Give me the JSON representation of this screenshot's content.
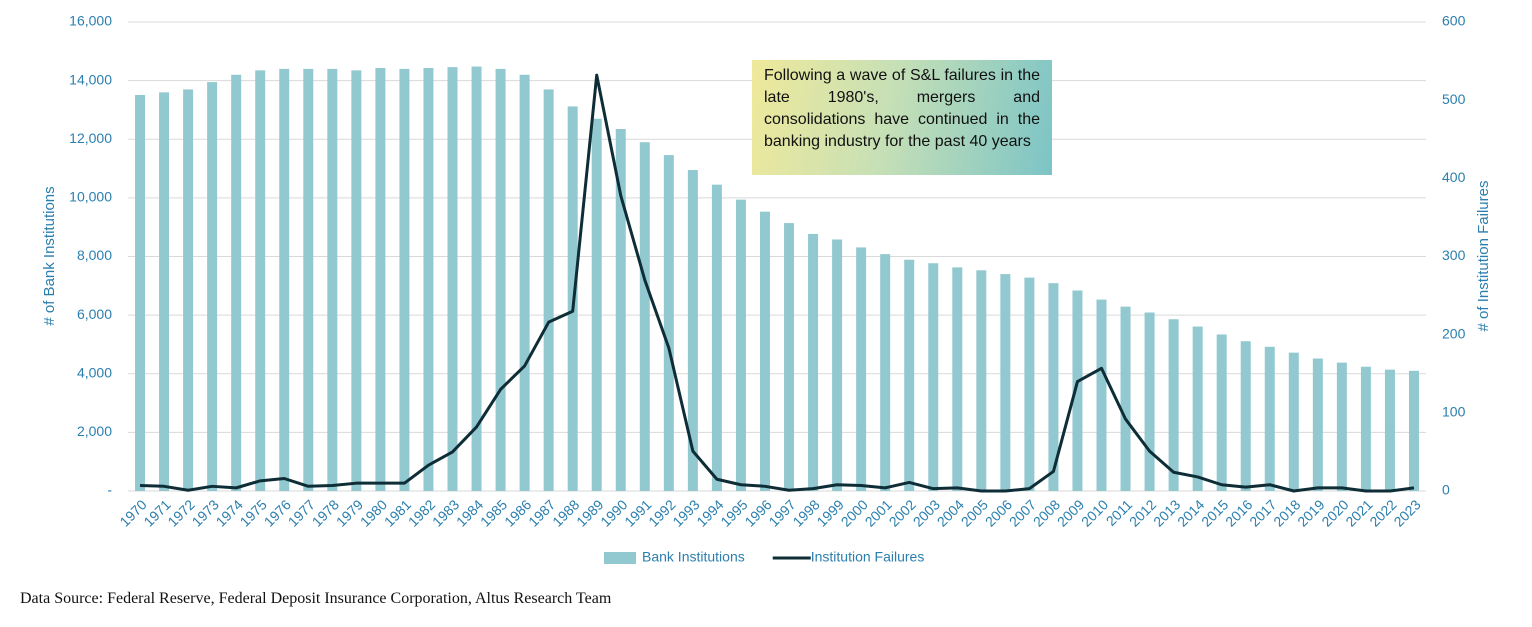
{
  "chart_data": {
    "type": "combo",
    "categories": [
      "1970",
      "1971",
      "1972",
      "1973",
      "1974",
      "1975",
      "1976",
      "1977",
      "1978",
      "1979",
      "1980",
      "1981",
      "1982",
      "1983",
      "1984",
      "1985",
      "1986",
      "1987",
      "1988",
      "1989",
      "1990",
      "1991",
      "1992",
      "1993",
      "1994",
      "1995",
      "1996",
      "1997",
      "1998",
      "1999",
      "2000",
      "2001",
      "2002",
      "2003",
      "2004",
      "2005",
      "2006",
      "2007",
      "2008",
      "2009",
      "2010",
      "2011",
      "2012",
      "2013",
      "2014",
      "2015",
      "2016",
      "2017",
      "2018",
      "2019",
      "2020",
      "2021",
      "2022",
      "2023"
    ],
    "series": [
      {
        "name": "Bank Institutions",
        "type": "bar",
        "color": "#92c9d0",
        "axis": "y",
        "values": [
          13510,
          13600,
          13700,
          13950,
          14200,
          14350,
          14400,
          14400,
          14400,
          14350,
          14430,
          14400,
          14430,
          14460,
          14480,
          14400,
          14200,
          13700,
          13120,
          12700,
          12350,
          11900,
          11460,
          10950,
          10450,
          9940,
          9530,
          9140,
          8770,
          8580,
          8310,
          8080,
          7890,
          7770,
          7630,
          7530,
          7400,
          7280,
          7090,
          6840,
          6530,
          6290,
          6090,
          5860,
          5610,
          5340,
          5110,
          4920,
          4720,
          4520,
          4380,
          4240,
          4140,
          4100
        ]
      },
      {
        "name": "Institution Failures",
        "type": "line",
        "color": "#0f2d36",
        "axis": "y2",
        "values": [
          7,
          6,
          1,
          6,
          4,
          13,
          16,
          6,
          7,
          10,
          10,
          10,
          33,
          50,
          82,
          130,
          160,
          216,
          230,
          532,
          378,
          270,
          183,
          51,
          15,
          8,
          6,
          1,
          3,
          8,
          7,
          4,
          11,
          3,
          4,
          0,
          0,
          3,
          25,
          140,
          157,
          92,
          51,
          24,
          18,
          8,
          5,
          8,
          0,
          4,
          4,
          0,
          0,
          4
        ]
      }
    ],
    "ylabel": "# of Bank Institutions",
    "y2label": "# of Institution Failures",
    "ylim": [
      0,
      16000
    ],
    "yticks": [
      {
        "value": 0,
        "label": "-"
      },
      {
        "value": 2000,
        "label": "2,000"
      },
      {
        "value": 4000,
        "label": "4,000"
      },
      {
        "value": 6000,
        "label": "6,000"
      },
      {
        "value": 8000,
        "label": "8,000"
      },
      {
        "value": 10000,
        "label": "10,000"
      },
      {
        "value": 12000,
        "label": "12,000"
      },
      {
        "value": 14000,
        "label": "14,000"
      },
      {
        "value": 16000,
        "label": "16,000"
      }
    ],
    "y2lim": [
      0,
      600
    ],
    "y2ticks": [
      0,
      100,
      200,
      300,
      400,
      500,
      600
    ],
    "grid": true,
    "legend": "bottom",
    "annotation": "Following a wave of S&L failures in the late 1980's, mergers and consolidations have continued in the banking industry for the past 40 years",
    "source": "Data Source: Federal Reserve, Federal Deposit Insurance Corporation, Altus Research Team"
  }
}
